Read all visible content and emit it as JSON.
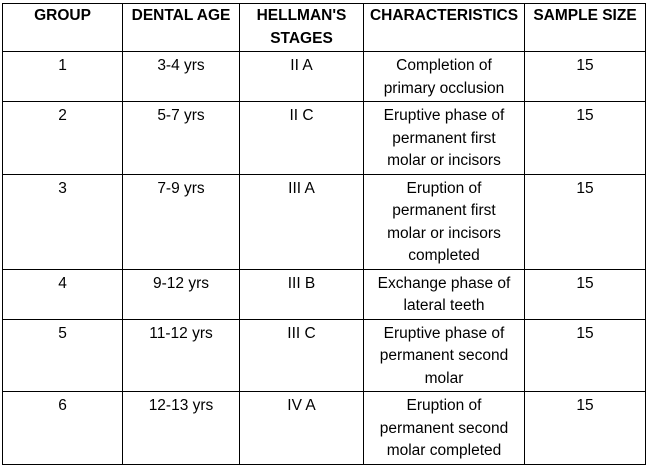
{
  "table": {
    "headers": {
      "group": [
        "GROUP"
      ],
      "dental_age": [
        "DENTAL AGE"
      ],
      "stages": [
        "HELLMAN'S",
        "STAGES"
      ],
      "characteristics": [
        "CHARACTERISTICS"
      ],
      "sample_size": [
        "SAMPLE SIZE"
      ]
    },
    "rows": [
      {
        "group": "1",
        "dental_age": "3-4 yrs",
        "stage": "II A",
        "characteristics": [
          "Completion of",
          "primary occlusion"
        ],
        "sample_size": "15"
      },
      {
        "group": "2",
        "dental_age": "5-7 yrs",
        "stage": "II C",
        "characteristics": [
          "Eruptive phase of",
          "permanent first",
          "molar or incisors"
        ],
        "sample_size": "15"
      },
      {
        "group": "3",
        "dental_age": "7-9 yrs",
        "stage": "III A",
        "characteristics": [
          "Eruption of",
          "permanent first",
          "molar or incisors",
          "completed"
        ],
        "sample_size": "15"
      },
      {
        "group": "4",
        "dental_age": "9-12 yrs",
        "stage": "III B",
        "characteristics": [
          "Exchange phase of",
          "lateral teeth"
        ],
        "sample_size": "15"
      },
      {
        "group": "5",
        "dental_age": "11-12 yrs",
        "stage": "III C",
        "characteristics": [
          "Eruptive phase of",
          "permanent second",
          "molar"
        ],
        "sample_size": "15"
      },
      {
        "group": "6",
        "dental_age": "12-13 yrs",
        "stage": "IV A",
        "characteristics": [
          "Eruption of",
          "permanent second",
          "molar completed"
        ],
        "sample_size": "15"
      }
    ]
  }
}
